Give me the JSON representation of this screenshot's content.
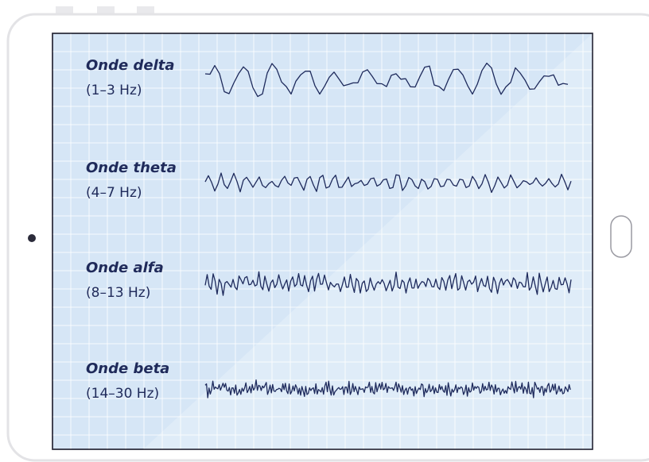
{
  "waves": [
    {
      "name": "Onde delta",
      "band": "(1–3 Hz)"
    },
    {
      "name": "Onde theta",
      "band": "(4–7 Hz)"
    },
    {
      "name": "Onde alfa",
      "band": "(8–13 Hz)"
    },
    {
      "name": "Onde beta",
      "band": "(14–30 Hz)"
    }
  ]
}
